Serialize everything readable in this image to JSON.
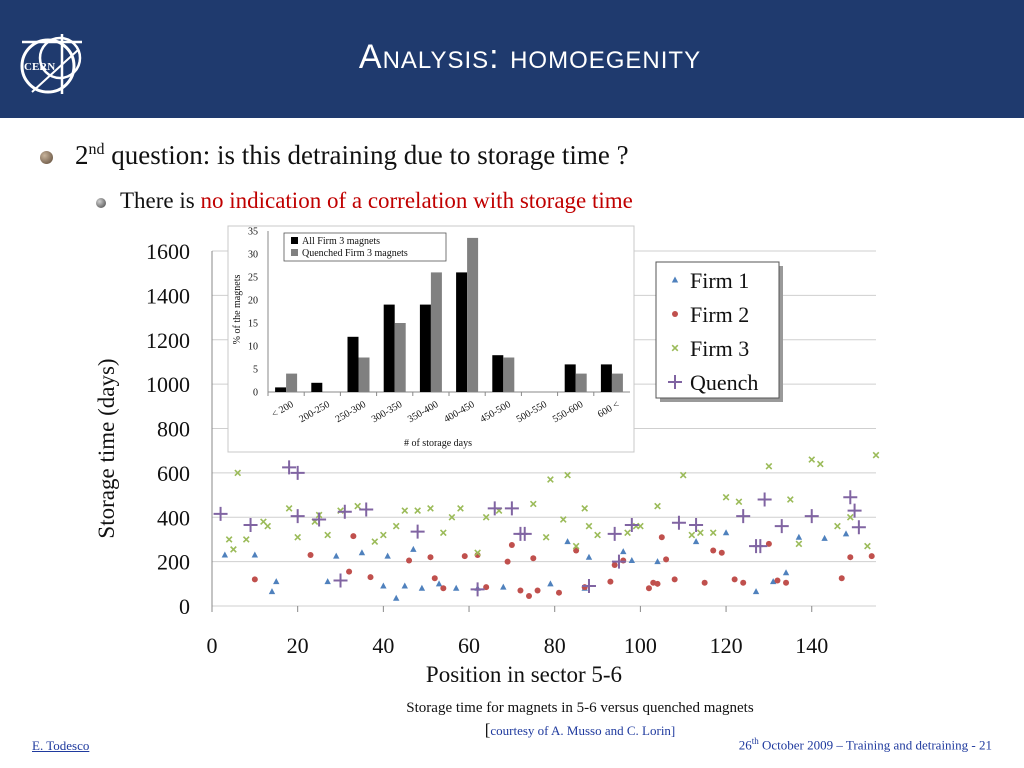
{
  "slide": {
    "title": "Analysis: homoegenity",
    "logo_text": "CERN",
    "bullet1_prefix": "2",
    "bullet1_sup": "nd",
    "bullet1_text": " question: is this detraining due to storage time ?",
    "bullet2_prefix": "There is ",
    "bullet2_highlight": "no indication of a correlation with storage time",
    "caption": "Storage time for magnets in 5-6 versus quenched magnets",
    "caption_open": "[",
    "caption_credit": "courtesy of A. Musso and C. Lorin]",
    "footer_left": "E. Todesco",
    "footer_right_day": "26",
    "footer_right_sup": "th",
    "footer_right_rest": " October 2009 – Training and detraining - 21",
    "colors": {
      "header": "#1f3a6e",
      "firm1": "#4f81bd",
      "firm2": "#c0504d",
      "firm3": "#9bbb59",
      "quench": "#8064a2",
      "highlight": "#c00000"
    }
  },
  "chart_data": [
    {
      "type": "scatter",
      "xlabel": "Position in sector 5-6",
      "ylabel": "Storage time (days)",
      "xlim": [
        0,
        155
      ],
      "ylim": [
        0,
        1600
      ],
      "xticks": [
        0,
        20,
        40,
        60,
        80,
        100,
        120,
        140
      ],
      "yticks": [
        0,
        200,
        400,
        600,
        800,
        1000,
        1200,
        1400,
        1600
      ],
      "grid": "horizontal",
      "legend_position": "top-right",
      "series": [
        {
          "name": "Firm 1",
          "marker": "triangle",
          "color": "#4f81bd",
          "points": [
            [
              3,
              230
            ],
            [
              10,
              230
            ],
            [
              14,
              65
            ],
            [
              15,
              110
            ],
            [
              27,
              110
            ],
            [
              29,
              225
            ],
            [
              35,
              240
            ],
            [
              40,
              90
            ],
            [
              41,
              225
            ],
            [
              43,
              35
            ],
            [
              45,
              90
            ],
            [
              47,
              255
            ],
            [
              49,
              80
            ],
            [
              53,
              100
            ],
            [
              57,
              80
            ],
            [
              62,
              80
            ],
            [
              68,
              85
            ],
            [
              79,
              100
            ],
            [
              83,
              290
            ],
            [
              87,
              80
            ],
            [
              88,
              220
            ],
            [
              96,
              245
            ],
            [
              98,
              205
            ],
            [
              104,
              200
            ],
            [
              113,
              290
            ],
            [
              120,
              330
            ],
            [
              127,
              65
            ],
            [
              131,
              110
            ],
            [
              134,
              150
            ],
            [
              137,
              310
            ],
            [
              143,
              305
            ],
            [
              148,
              325
            ]
          ]
        },
        {
          "name": "Firm 2",
          "marker": "circle",
          "color": "#c0504d",
          "points": [
            [
              10,
              120
            ],
            [
              23,
              230
            ],
            [
              32,
              155
            ],
            [
              33,
              315
            ],
            [
              37,
              130
            ],
            [
              46,
              205
            ],
            [
              51,
              220
            ],
            [
              52,
              125
            ],
            [
              54,
              80
            ],
            [
              59,
              225
            ],
            [
              62,
              230
            ],
            [
              64,
              85
            ],
            [
              69,
              200
            ],
            [
              70,
              275
            ],
            [
              72,
              70
            ],
            [
              74,
              45
            ],
            [
              75,
              215
            ],
            [
              76,
              70
            ],
            [
              81,
              60
            ],
            [
              85,
              250
            ],
            [
              87,
              85
            ],
            [
              93,
              110
            ],
            [
              94,
              185
            ],
            [
              96,
              205
            ],
            [
              102,
              80
            ],
            [
              103,
              105
            ],
            [
              104,
              100
            ],
            [
              105,
              310
            ],
            [
              106,
              210
            ],
            [
              108,
              120
            ],
            [
              115,
              105
            ],
            [
              117,
              250
            ],
            [
              119,
              240
            ],
            [
              122,
              120
            ],
            [
              124,
              105
            ],
            [
              130,
              280
            ],
            [
              132,
              115
            ],
            [
              134,
              105
            ],
            [
              147,
              125
            ],
            [
              149,
              220
            ],
            [
              154,
              225
            ]
          ]
        },
        {
          "name": "Firm 3",
          "marker": "x",
          "color": "#9bbb59",
          "points": [
            [
              4,
              300
            ],
            [
              5,
              255
            ],
            [
              6,
              600
            ],
            [
              8,
              300
            ],
            [
              12,
              380
            ],
            [
              13,
              360
            ],
            [
              18,
              440
            ],
            [
              20,
              310
            ],
            [
              24,
              380
            ],
            [
              25,
              410
            ],
            [
              27,
              320
            ],
            [
              30,
              430
            ],
            [
              34,
              450
            ],
            [
              38,
              290
            ],
            [
              40,
              320
            ],
            [
              43,
              360
            ],
            [
              45,
              430
            ],
            [
              48,
              430
            ],
            [
              51,
              440
            ],
            [
              54,
              330
            ],
            [
              56,
              400
            ],
            [
              58,
              440
            ],
            [
              62,
              240
            ],
            [
              64,
              400
            ],
            [
              67,
              430
            ],
            [
              75,
              460
            ],
            [
              78,
              310
            ],
            [
              79,
              570
            ],
            [
              82,
              390
            ],
            [
              83,
              590
            ],
            [
              85,
              270
            ],
            [
              87,
              440
            ],
            [
              88,
              360
            ],
            [
              90,
              320
            ],
            [
              97,
              330
            ],
            [
              99,
              360
            ],
            [
              100,
              360
            ],
            [
              104,
              450
            ],
            [
              110,
              590
            ],
            [
              112,
              320
            ],
            [
              114,
              330
            ],
            [
              117,
              330
            ],
            [
              120,
              490
            ],
            [
              123,
              470
            ],
            [
              130,
              630
            ],
            [
              135,
              480
            ],
            [
              137,
              280
            ],
            [
              140,
              660
            ],
            [
              142,
              640
            ],
            [
              146,
              360
            ],
            [
              149,
              400
            ],
            [
              153,
              270
            ],
            [
              155,
              680
            ]
          ]
        },
        {
          "name": "Quench",
          "marker": "plus",
          "color": "#8064a2",
          "points": [
            [
              2,
              415
            ],
            [
              9,
              365
            ],
            [
              18,
              625
            ],
            [
              20,
              600
            ],
            [
              20,
              405
            ],
            [
              25,
              390
            ],
            [
              31,
              425
            ],
            [
              30,
              115
            ],
            [
              36,
              435
            ],
            [
              48,
              335
            ],
            [
              62,
              75
            ],
            [
              66,
              440
            ],
            [
              70,
              440
            ],
            [
              72,
              325
            ],
            [
              73,
              325
            ],
            [
              88,
              90
            ],
            [
              94,
              325
            ],
            [
              95,
              200
            ],
            [
              98,
              365
            ],
            [
              109,
              375
            ],
            [
              113,
              365
            ],
            [
              124,
              405
            ],
            [
              127,
              270
            ],
            [
              128,
              270
            ],
            [
              129,
              480
            ],
            [
              133,
              360
            ],
            [
              140,
              405
            ],
            [
              149,
              490
            ],
            [
              150,
              430
            ],
            [
              151,
              355
            ]
          ]
        }
      ]
    },
    {
      "type": "bar",
      "xlabel": "# of storage days",
      "ylabel": "% of the magnets",
      "ylim": [
        0,
        35
      ],
      "yticks": [
        0,
        5,
        10,
        15,
        20,
        25,
        30,
        35
      ],
      "legend_position": "top-left",
      "categories": [
        "< 200",
        "200-250",
        "250-300",
        "300-350",
        "350-400",
        "400-450",
        "450-500",
        "500-550",
        "550-600",
        "600 <"
      ],
      "series": [
        {
          "name": "All Firm 3 magnets",
          "color": "#000000",
          "values": [
            1,
            2,
            12,
            19,
            19,
            26,
            8,
            0,
            6,
            6
          ]
        },
        {
          "name": "Quenched Firm 3 magnets",
          "color": "#808080",
          "values": [
            4,
            0,
            7.5,
            15,
            26,
            33.5,
            7.5,
            0,
            4,
            4
          ]
        }
      ]
    }
  ]
}
